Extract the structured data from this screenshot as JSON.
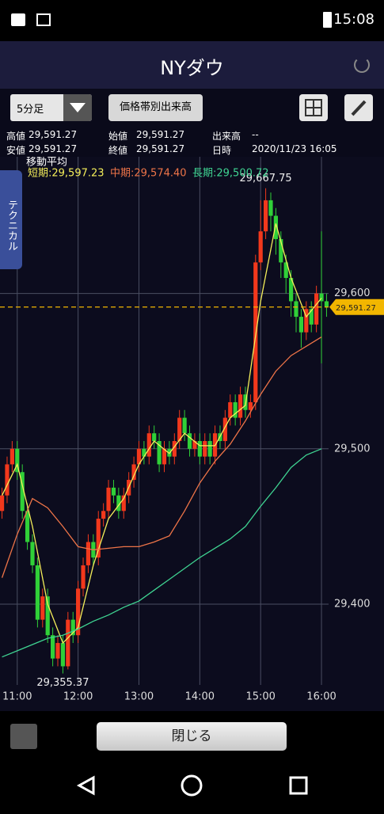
{
  "status_bar": {
    "time": "15:08"
  },
  "header": {
    "title": "NYダウ"
  },
  "toolbar": {
    "interval": "5分足",
    "button": "価格帯別出来高"
  },
  "info": {
    "rows": [
      [
        "高値",
        "29,591.27",
        "始値",
        "29,591.27",
        "出来高",
        "--"
      ],
      [
        "安値",
        "29,591.27",
        "終値",
        "29,591.27",
        "日時",
        "2020/11/23 16:05"
      ]
    ]
  },
  "side_tab": "テクニカル",
  "chart_data": {
    "type": "candlestick",
    "legend_title": "移動平均",
    "x": [
      645,
      650,
      655,
      660,
      665,
      670,
      675,
      680,
      685,
      690,
      695,
      700,
      705,
      710,
      715,
      720,
      725,
      730,
      735,
      740,
      745,
      750,
      755,
      760,
      765,
      770,
      775,
      780,
      785,
      790,
      795,
      800,
      805,
      810,
      815,
      820,
      825,
      830,
      835,
      840,
      845,
      850,
      855,
      860,
      865,
      870,
      875,
      880,
      885,
      890,
      895,
      900,
      905,
      910,
      915,
      920,
      925,
      930,
      935,
      940,
      945,
      950,
      955,
      960,
      965
    ],
    "open": [
      29460,
      29470,
      29490,
      29500,
      29485,
      29460,
      29440,
      29425,
      29390,
      29405,
      29380,
      29365,
      29375,
      29360,
      29390,
      29380,
      29410,
      29425,
      29440,
      29430,
      29455,
      29460,
      29475,
      29470,
      29460,
      29470,
      29480,
      29490,
      29500,
      29495,
      29510,
      29505,
      29490,
      29500,
      29495,
      29505,
      29520,
      29510,
      29500,
      29505,
      29495,
      29505,
      29495,
      29510,
      29505,
      29520,
      29530,
      29520,
      29535,
      29525,
      29530,
      29620,
      29640,
      29660,
      29650,
      29635,
      29620,
      29610,
      29595,
      29585,
      29575,
      29590,
      29580,
      29600,
      29595
    ],
    "high": [
      29475,
      29495,
      29505,
      29505,
      29490,
      29465,
      29445,
      29430,
      29410,
      29410,
      29385,
      29380,
      29380,
      29395,
      29395,
      29415,
      29430,
      29445,
      29445,
      29460,
      29465,
      29480,
      29480,
      29475,
      29475,
      29485,
      29495,
      29505,
      29505,
      29515,
      29515,
      29510,
      29505,
      29505,
      29510,
      29525,
      29525,
      29515,
      29510,
      29510,
      29510,
      29510,
      29515,
      29515,
      29525,
      29535,
      29535,
      29540,
      29540,
      29535,
      29625,
      29660,
      29667.75,
      29665,
      29655,
      29640,
      29625,
      29615,
      29600,
      29590,
      29595,
      29595,
      29605,
      29640,
      29600
    ],
    "low": [
      29455,
      29465,
      29485,
      29480,
      29455,
      29435,
      29420,
      29385,
      29385,
      29375,
      29360,
      29360,
      29355.37,
      29358,
      29375,
      29375,
      29405,
      29420,
      29425,
      29425,
      29450,
      29455,
      29465,
      29455,
      29455,
      29465,
      29475,
      29485,
      29490,
      29490,
      29500,
      29485,
      29485,
      29490,
      29490,
      29500,
      29505,
      29495,
      29495,
      29490,
      29490,
      29490,
      29490,
      29500,
      29500,
      29515,
      29515,
      29515,
      29520,
      29520,
      29525,
      29615,
      29635,
      29640,
      29625,
      29610,
      29600,
      29585,
      29575,
      29565,
      29570,
      29575,
      29575,
      29555,
      29585
    ],
    "close": [
      29470,
      29490,
      29500,
      29485,
      29460,
      29440,
      29425,
      29390,
      29405,
      29380,
      29365,
      29375,
      29360,
      29390,
      29380,
      29410,
      29425,
      29440,
      29430,
      29455,
      29460,
      29475,
      29470,
      29460,
      29470,
      29480,
      29490,
      29500,
      29495,
      29510,
      29505,
      29490,
      29500,
      29495,
      29505,
      29520,
      29510,
      29500,
      29505,
      29495,
      29505,
      29495,
      29510,
      29505,
      29520,
      29530,
      29520,
      29535,
      29525,
      29530,
      29620,
      29640,
      29660,
      29650,
      29635,
      29620,
      29610,
      29595,
      29585,
      29575,
      29590,
      29580,
      29600,
      29595,
      29591.27
    ],
    "up_color": "#f2381c",
    "down_color": "#30d038",
    "series": [
      {
        "name": "短期:29,597.23",
        "color": "#f4ee5a",
        "x": [
          645,
          660,
          675,
          690,
          705,
          720,
          735,
          750,
          765,
          780,
          795,
          810,
          825,
          840,
          855,
          870,
          885,
          900,
          915,
          930,
          945,
          960
        ],
        "values": [
          29470,
          29490,
          29450,
          29400,
          29375,
          29385,
          29425,
          29455,
          29468,
          29490,
          29505,
          29497,
          29510,
          29502,
          29502,
          29520,
          29528,
          29595,
          29645,
          29610,
          29585,
          29597
        ]
      },
      {
        "name": "中期:29,574.40",
        "color": "#ee7448",
        "x": [
          645,
          660,
          675,
          690,
          705,
          720,
          735,
          750,
          765,
          780,
          795,
          810,
          825,
          840,
          855,
          870,
          885,
          900,
          915,
          930,
          945,
          960
        ],
        "values": [
          29417,
          29445,
          29468,
          29462,
          29450,
          29437,
          29435,
          29436,
          29437,
          29437,
          29440,
          29444,
          29460,
          29478,
          29492,
          29503,
          29518,
          29535,
          29550,
          29560,
          29566,
          29572
        ]
      },
      {
        "name": "長期:29,500.72",
        "color": "#3fd492",
        "x": [
          645,
          660,
          675,
          690,
          705,
          720,
          735,
          750,
          765,
          780,
          795,
          810,
          825,
          840,
          855,
          870,
          885,
          900,
          915,
          930,
          945,
          960
        ],
        "values": [
          29366,
          29370,
          29374,
          29378,
          29380,
          29384,
          29389,
          29393,
          29398,
          29402,
          29409,
          29416,
          29423,
          29430,
          29436,
          29442,
          29450,
          29463,
          29475,
          29488,
          29496,
          29500
        ]
      }
    ],
    "annotations": [
      {
        "x": 905,
        "value": 29667.75,
        "label": "29,667.75"
      },
      {
        "x": 705,
        "value": 29355.37,
        "label": "29,355.37"
      }
    ],
    "current_price": {
      "value": 29591.27,
      "label": "29,591.27",
      "color": "#f2b600"
    },
    "xlim": [
      643,
      967
    ],
    "ylim": [
      29348,
      29688
    ],
    "xticks": [
      {
        "value": 660,
        "label": "11:00"
      },
      {
        "value": 720,
        "label": "12:00"
      },
      {
        "value": 780,
        "label": "13:00"
      },
      {
        "value": 840,
        "label": "14:00"
      },
      {
        "value": 900,
        "label": "15:00"
      },
      {
        "value": 960,
        "label": "16:00"
      }
    ],
    "yticks": [
      {
        "value": 29400,
        "label": "29,400"
      },
      {
        "value": 29500,
        "label": "29,500"
      },
      {
        "value": 29600,
        "label": "29,600"
      }
    ],
    "grid": true
  },
  "footer": {
    "button": "閉じる"
  }
}
